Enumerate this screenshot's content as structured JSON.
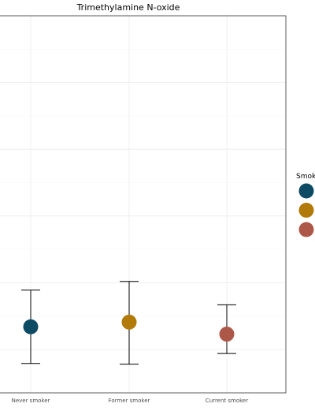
{
  "chart_data": {
    "type": "scatter",
    "title": "Trimethylamine N-oxide",
    "xlabel": "",
    "ylabel": "",
    "categories": [
      "Never smoker",
      "Former smoker",
      "Current smoker"
    ],
    "values": [
      0.34,
      0.41,
      0.23
    ],
    "error_low": [
      -0.21,
      -0.22,
      -0.06
    ],
    "error_high": [
      0.89,
      1.02,
      0.67
    ],
    "ylim": [
      -0.65,
      5.0
    ],
    "grid": true,
    "legend_title": "Smok",
    "legend_position": "right",
    "colors": [
      "#0d4a63",
      "#b17a09",
      "#ad5749"
    ]
  }
}
